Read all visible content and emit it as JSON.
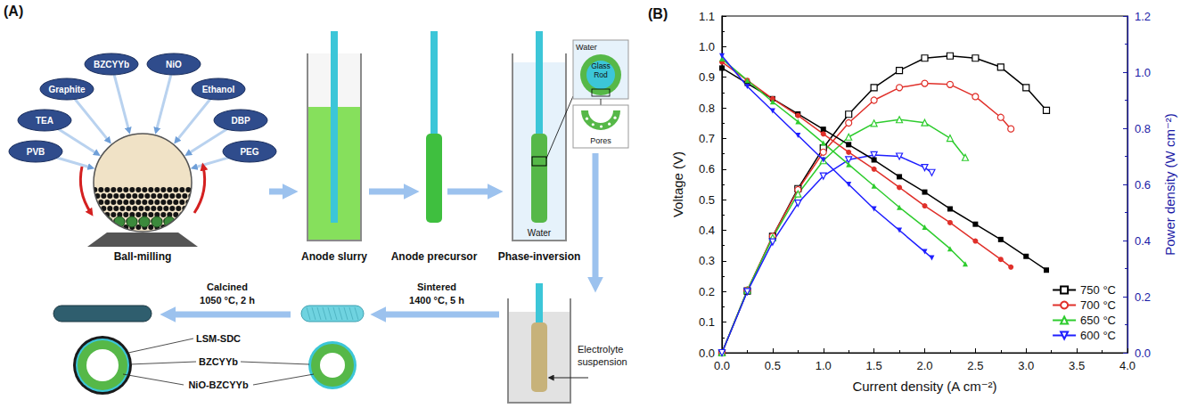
{
  "diagram": {
    "label": "(A)",
    "ingredients": [
      "PVB",
      "TEA",
      "Graphite",
      "BZCYYb",
      "NiO",
      "Ethanol",
      "DBP",
      "PEG"
    ],
    "steps": {
      "ball_milling": "Ball-milling",
      "anode_slurry": "Anode slurry",
      "anode_precursor": "Anode precursor",
      "phase_inversion": "Phase-inversion",
      "electrolyte_suspension": "Electrolyte suspension"
    },
    "beaker_label": "Water",
    "inset": {
      "water": "Water",
      "glass_rod": "Glass Rod",
      "pores": "Pores"
    },
    "sintered": {
      "label": "Sintered",
      "condition": "1400 °C, 5 h"
    },
    "calcined": {
      "label": "Calcined",
      "condition": "1050 °C, 2 h"
    },
    "layers": [
      "LSM-SDC",
      "BZCYYb",
      "NiO-BZCYYb"
    ]
  },
  "chart_data": {
    "panel_label": "(B)",
    "type": "line",
    "x_label": "Current density (A cm⁻²)",
    "y_label": "Voltage (V)",
    "y2_label": "Power density (W cm⁻²)",
    "xlim": [
      0,
      4
    ],
    "xticks": [
      {
        "value": 0,
        "label": "0.0"
      },
      0.5,
      {
        "value": 1,
        "label": "1.0"
      },
      1.5,
      {
        "value": 2,
        "label": "2.0"
      },
      2.5,
      {
        "value": 3,
        "label": "3.0"
      },
      3.5,
      {
        "value": 4,
        "label": "4.0"
      }
    ],
    "ylim": [
      0,
      1.1
    ],
    "yticks": [
      {
        "value": 0,
        "label": "0.0"
      },
      0.1,
      0.2,
      0.3,
      0.4,
      0.5,
      0.6,
      0.7,
      0.8,
      0.9,
      {
        "value": 1,
        "label": "1.0"
      },
      1.1
    ],
    "y2lim": [
      0,
      1.2
    ],
    "y2ticks": [
      {
        "value": 0,
        "label": "0.0"
      },
      0.2,
      0.4,
      0.6,
      0.8,
      {
        "value": 1,
        "label": "1.0"
      },
      1.2
    ],
    "grid": false,
    "legend": "bottom-right",
    "series": [
      {
        "name": "750 °C",
        "axis": "y2",
        "color": "#000000",
        "marker": "open-square",
        "x": [
          0,
          0.25,
          0.5,
          0.75,
          1,
          1.25,
          1.5,
          1.75,
          2,
          2.25,
          2.5,
          2.75,
          3,
          3.2
        ],
        "values": [
          0,
          0.22,
          0.415,
          0.585,
          0.73,
          0.85,
          0.945,
          1.006,
          1.05,
          1.058,
          1.05,
          1.018,
          0.945,
          0.864
        ]
      },
      {
        "name": "700 °C",
        "axis": "y2",
        "color": "#e0302a",
        "marker": "open-circle",
        "x": [
          0,
          0.25,
          0.5,
          0.75,
          1,
          1.25,
          1.5,
          1.75,
          2,
          2.25,
          2.5,
          2.75,
          2.85
        ],
        "values": [
          0,
          0.223,
          0.415,
          0.581,
          0.715,
          0.819,
          0.9,
          0.945,
          0.96,
          0.956,
          0.913,
          0.839,
          0.798
        ]
      },
      {
        "name": "650 °C",
        "axis": "y2",
        "color": "#2ecc2e",
        "marker": "open-triangle",
        "x": [
          0,
          0.25,
          0.5,
          0.75,
          1,
          1.25,
          1.5,
          1.75,
          2,
          2.25,
          2.4
        ],
        "values": [
          0,
          0.223,
          0.41,
          0.566,
          0.685,
          0.769,
          0.818,
          0.831,
          0.82,
          0.765,
          0.696
        ]
      },
      {
        "name": "600 °C",
        "axis": "y2",
        "color": "#1f1fff",
        "marker": "open-down-triangle",
        "x": [
          0,
          0.25,
          0.5,
          0.75,
          1,
          1.25,
          1.5,
          1.75,
          2,
          2.07
        ],
        "values": [
          0,
          0.218,
          0.395,
          0.533,
          0.63,
          0.688,
          0.705,
          0.7,
          0.66,
          0.642
        ]
      },
      {
        "name": "750 °C",
        "color": "#000000",
        "marker": "filled-square",
        "x": [
          0,
          0.25,
          0.5,
          0.75,
          1,
          1.25,
          1.5,
          1.75,
          2,
          2.25,
          2.5,
          2.75,
          3,
          3.2
        ],
        "values": [
          0.93,
          0.88,
          0.83,
          0.78,
          0.73,
          0.68,
          0.63,
          0.575,
          0.525,
          0.47,
          0.42,
          0.37,
          0.315,
          0.27
        ]
      },
      {
        "name": "700 °C",
        "color": "#e0302a",
        "marker": "filled-circle",
        "x": [
          0,
          0.25,
          0.5,
          0.75,
          1,
          1.25,
          1.5,
          1.75,
          2,
          2.25,
          2.5,
          2.75,
          2.85
        ],
        "values": [
          0.95,
          0.89,
          0.83,
          0.775,
          0.715,
          0.655,
          0.6,
          0.54,
          0.48,
          0.425,
          0.365,
          0.305,
          0.28
        ]
      },
      {
        "name": "650 °C",
        "color": "#2ecc2e",
        "marker": "filled-triangle",
        "x": [
          0,
          0.25,
          0.5,
          0.75,
          1,
          1.25,
          1.5,
          1.75,
          2,
          2.25,
          2.4
        ],
        "values": [
          0.96,
          0.89,
          0.82,
          0.755,
          0.685,
          0.615,
          0.545,
          0.475,
          0.41,
          0.34,
          0.29
        ]
      },
      {
        "name": "600 °C",
        "color": "#1f1fff",
        "marker": "filled-down-triangle",
        "x": [
          0,
          0.25,
          0.5,
          0.75,
          1,
          1.25,
          1.5,
          1.75,
          2,
          2.07
        ],
        "values": [
          0.97,
          0.87,
          0.79,
          0.71,
          0.63,
          0.55,
          0.47,
          0.4,
          0.33,
          0.31
        ]
      }
    ]
  }
}
